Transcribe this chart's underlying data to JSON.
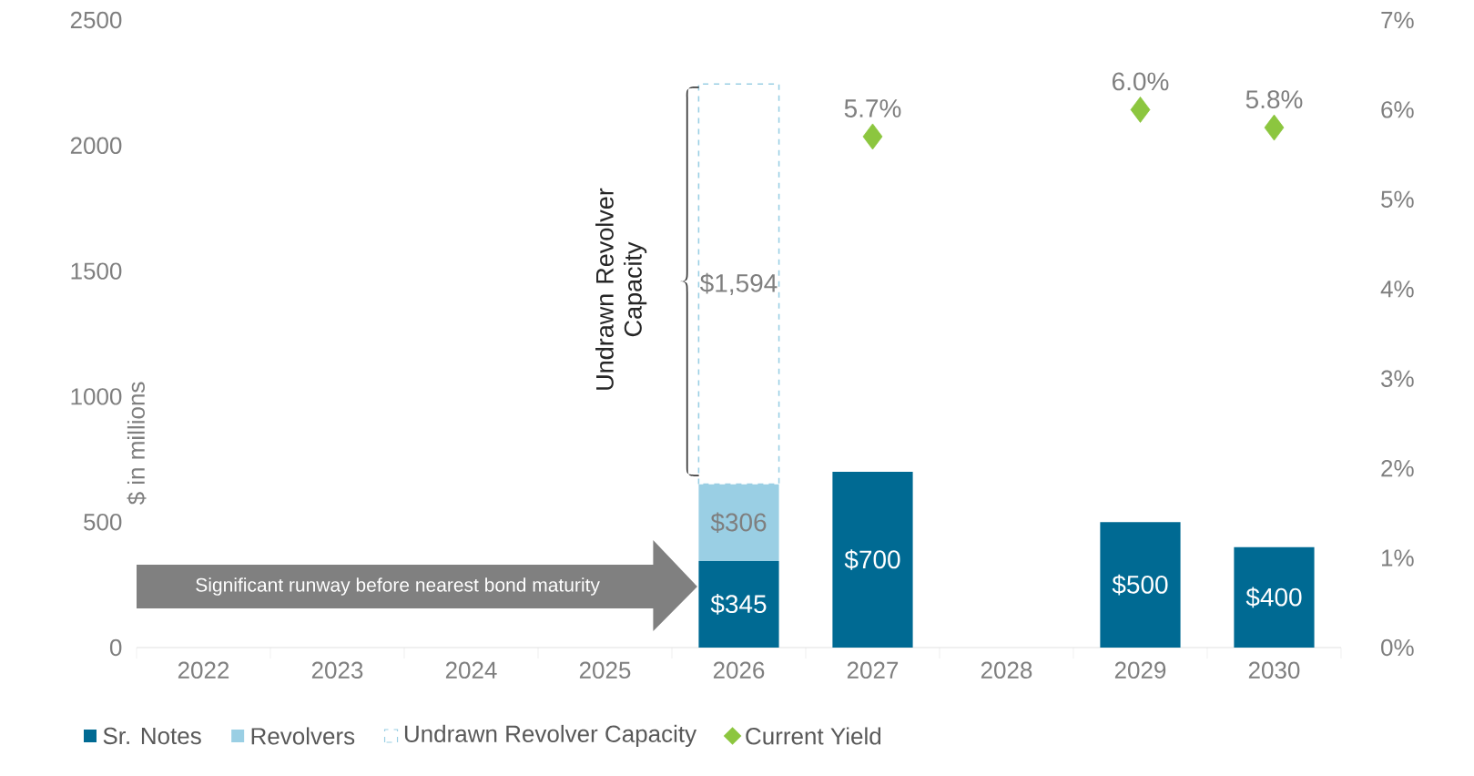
{
  "chart_data": {
    "type": "bar",
    "stacked": true,
    "ylabel": "$ in millions",
    "categories": [
      "2022",
      "2023",
      "2024",
      "2025",
      "2026",
      "2027",
      "2028",
      "2029",
      "2030"
    ],
    "series": [
      {
        "name": "Sr. Notes",
        "type": "bar",
        "color": "#006a93",
        "values": [
          null,
          null,
          null,
          null,
          345,
          700,
          null,
          500,
          400
        ],
        "value_labels": [
          null,
          null,
          null,
          null,
          "$345",
          "$700",
          null,
          "$500",
          "$400"
        ]
      },
      {
        "name": "Revolvers",
        "type": "bar",
        "color": "#9acfe4",
        "values": [
          null,
          null,
          null,
          null,
          306,
          null,
          null,
          null,
          null
        ],
        "value_labels": [
          null,
          null,
          null,
          null,
          "$306",
          null,
          null,
          null,
          null
        ]
      },
      {
        "name": "Undrawn Revolver Capacity",
        "type": "bar",
        "color": "#9acfe4",
        "line_style": "dashed",
        "values": [
          null,
          null,
          null,
          null,
          1594,
          null,
          null,
          null,
          null
        ],
        "value_labels": [
          null,
          null,
          null,
          null,
          "$1,594",
          null,
          null,
          null,
          null
        ]
      },
      {
        "name": "Current Yield",
        "type": "scatter",
        "axis": "y2",
        "marker": "diamond",
        "color": "#8cc63f",
        "values": [
          null,
          null,
          null,
          null,
          null,
          5.7,
          null,
          6.0,
          5.8
        ],
        "value_labels": [
          null,
          null,
          null,
          null,
          null,
          "5.7%",
          null,
          "6.0%",
          "5.8%"
        ]
      }
    ],
    "ylim": [
      0,
      2500
    ],
    "yticks": [
      0,
      500,
      1000,
      1500,
      2000,
      2500
    ],
    "y2lim": [
      0,
      7
    ],
    "y2ticks": [
      {
        "value": 0,
        "label": "0%"
      },
      {
        "value": 1,
        "label": "1%"
      },
      {
        "value": 2,
        "label": "2%"
      },
      {
        "value": 3,
        "label": "3%"
      },
      {
        "value": 4,
        "label": "4%"
      },
      {
        "value": 5,
        "label": "5%"
      },
      {
        "value": 6,
        "label": "6%"
      },
      {
        "value": 7,
        "label": "7%"
      }
    ],
    "annotations": [
      "Significant runway before nearest bond maturity",
      "Undrawn Revolver Capacity"
    ],
    "legend": "bottom",
    "grid": false
  }
}
